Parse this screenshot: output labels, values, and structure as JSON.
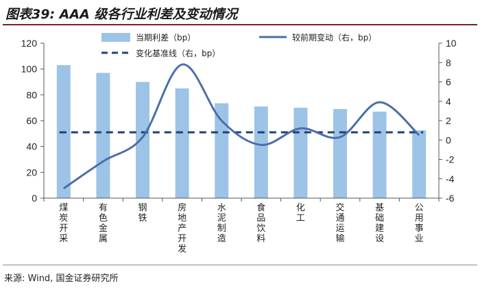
{
  "title": "图表39: AAA 级各行业利差及变动情况",
  "source": "来源: Wind, 国金证券研究所",
  "colors": {
    "bar": "#9dc3e6",
    "line": "#4a6ea9",
    "dash": "#1f3f73",
    "title_rule": "#7a1f2b"
  },
  "chart_data": {
    "type": "bar",
    "categories": [
      "煤炭开采",
      "有色金属",
      "钢铁",
      "房地产开发",
      "水泥制造",
      "食品饮料",
      "化工",
      "交通运输",
      "基础建设",
      "公用事业"
    ],
    "series": [
      {
        "name": "当期利差（bp）",
        "type": "bar",
        "axis": "left",
        "values": [
          103,
          97,
          90,
          85,
          73.5,
          71,
          70,
          69,
          67,
          52.5
        ]
      },
      {
        "name": "较前期变动（右，bp）",
        "type": "line",
        "axis": "right",
        "smooth": true,
        "values": [
          -5,
          -2.2,
          0.3,
          7.8,
          2,
          -0.5,
          1.2,
          0.3,
          3.9,
          0.5
        ]
      },
      {
        "name": "变化基准线（右，bp）",
        "type": "line",
        "axis": "right",
        "style": "dashed",
        "values": [
          0.8,
          0.8,
          0.8,
          0.8,
          0.8,
          0.8,
          0.8,
          0.8,
          0.8,
          0.8
        ]
      }
    ],
    "y_left": {
      "min": 0,
      "max": 120,
      "ticks": [
        "0",
        "20",
        "40",
        "60",
        "80",
        "100",
        "120"
      ]
    },
    "y_right": {
      "min": -6,
      "max": 10,
      "ticks": [
        "-6",
        "-4",
        "-2",
        "0",
        "2",
        "4",
        "6",
        "8",
        "10"
      ]
    },
    "legend_position": "top",
    "grid": false
  }
}
